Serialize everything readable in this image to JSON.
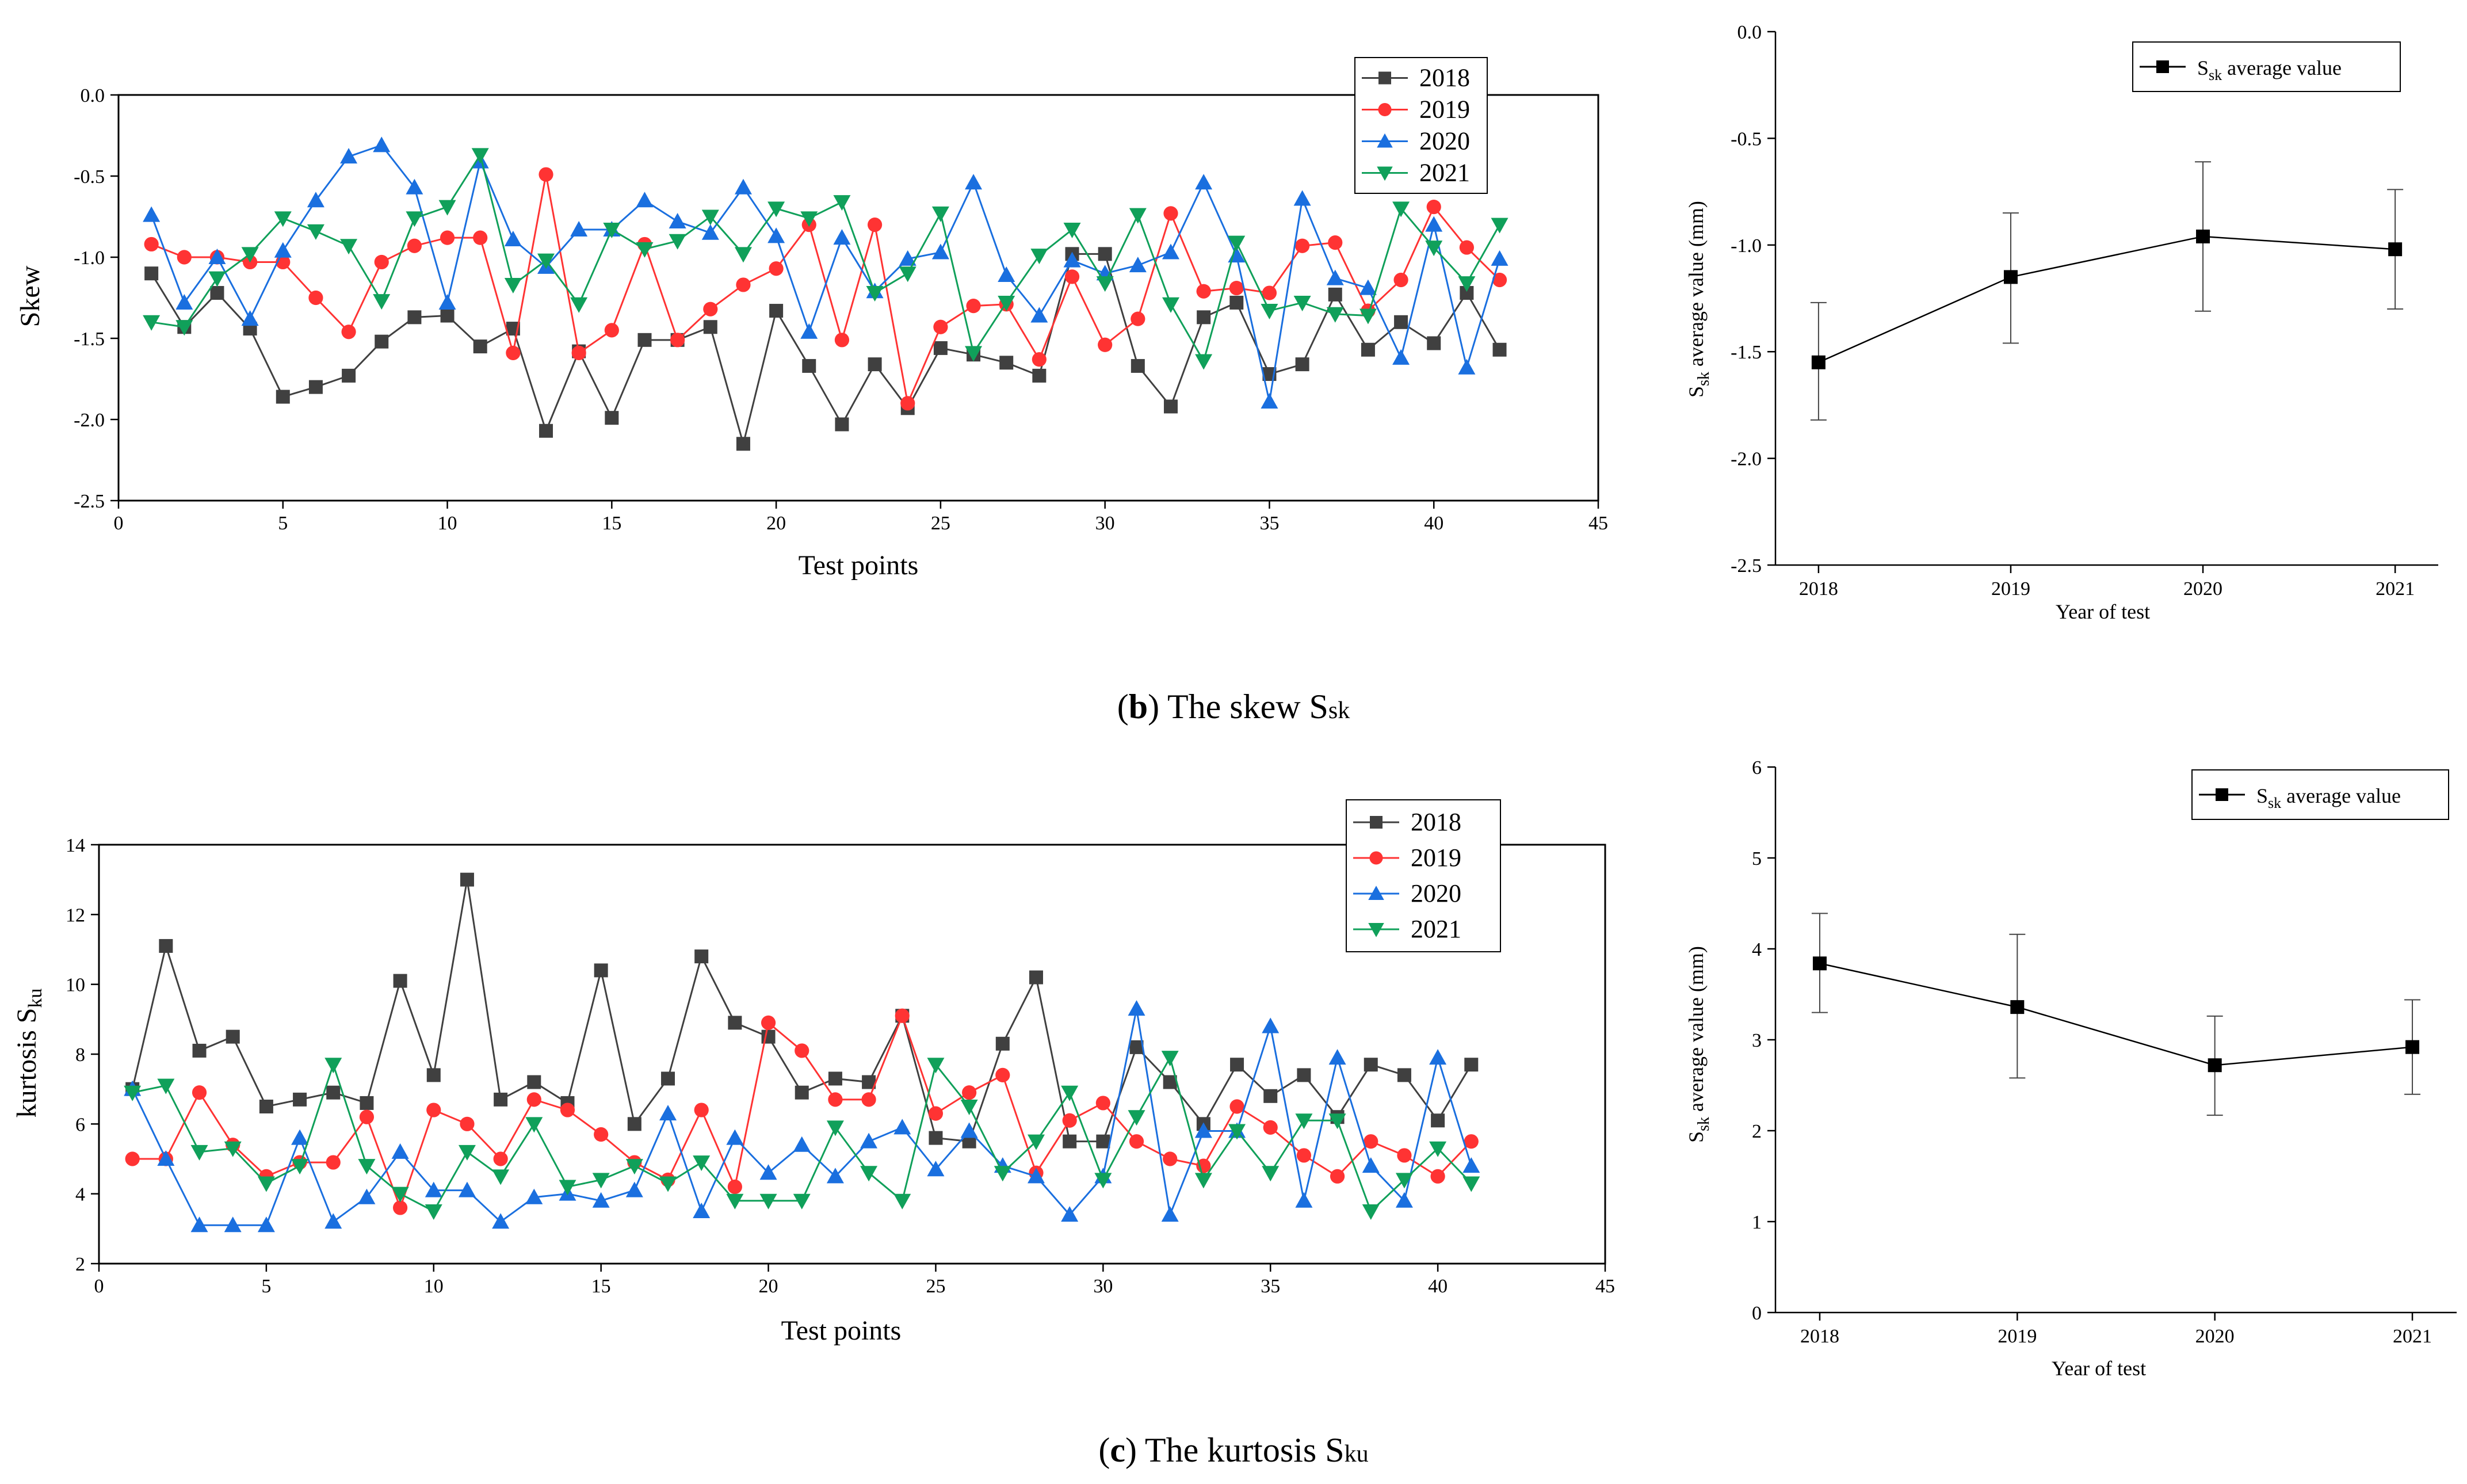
{
  "figure": {
    "captions": [
      {
        "label": "b",
        "text": ") The skew S",
        "sub": "sk"
      },
      {
        "label": "c",
        "text": ") The kurtosis S",
        "sub": "ku"
      }
    ]
  },
  "chart_data": [
    {
      "id": "skew-points",
      "type": "line",
      "title": "",
      "xlabel": "Test points",
      "ylabel": "Skew",
      "xlim": [
        0,
        45
      ],
      "ylim": [
        -2.5,
        0.0
      ],
      "xticks": [
        0,
        5,
        10,
        15,
        20,
        25,
        30,
        35,
        40,
        45
      ],
      "yticks": [
        -2.5,
        -2.0,
        -1.5,
        -1.0,
        -0.5,
        0.0
      ],
      "ytick_labels": [
        "-2.5",
        "-2.0",
        "-1.5",
        "-1.0",
        "-0.5",
        "0.0"
      ],
      "legend_position": "top-right",
      "x": [
        1,
        2,
        3,
        4,
        5,
        6,
        7,
        8,
        9,
        10,
        11,
        12,
        13,
        14,
        15,
        16,
        17,
        18,
        19,
        20,
        21,
        22,
        23,
        24,
        25,
        26,
        27,
        28,
        29,
        30,
        31,
        32,
        33,
        34,
        35,
        36,
        37,
        38,
        39,
        40,
        41,
        42
      ],
      "series": [
        {
          "name": "2018",
          "color": "#404040",
          "marker": "square",
          "values": [
            -1.1,
            -1.43,
            -1.22,
            -1.44,
            -1.86,
            -1.8,
            -1.73,
            -1.52,
            -1.37,
            -1.36,
            -1.55,
            -1.44,
            -2.07,
            -1.58,
            -1.99,
            -1.51,
            -1.51,
            -1.43,
            -2.15,
            -1.33,
            -1.67,
            -2.03,
            -1.66,
            -1.93,
            -1.56,
            -1.6,
            -1.65,
            -1.73,
            -0.98,
            -0.98,
            -1.67,
            -1.92,
            -1.37,
            -1.28,
            -1.72,
            -1.66,
            -1.23,
            -1.57,
            -1.4,
            -1.53,
            -1.22,
            -1.57
          ]
        },
        {
          "name": "2019",
          "color": "#ff3333",
          "marker": "circle",
          "values": [
            -0.92,
            -1.0,
            -1.0,
            -1.03,
            -1.03,
            -1.25,
            -1.46,
            -1.03,
            -0.93,
            -0.88,
            -0.88,
            -1.59,
            -0.49,
            -1.59,
            -1.45,
            -0.92,
            -1.51,
            -1.32,
            -1.17,
            -1.07,
            -0.8,
            -1.51,
            -0.8,
            -1.9,
            -1.43,
            -1.3,
            -1.29,
            -1.63,
            -1.12,
            -1.54,
            -1.38,
            -0.73,
            -1.21,
            -1.19,
            -1.22,
            -0.93,
            -0.91,
            -1.33,
            -1.14,
            -0.69,
            -0.94,
            -1.14
          ]
        },
        {
          "name": "2020",
          "color": "#1a6fdf",
          "marker": "triangle-up",
          "values": [
            -0.74,
            -1.28,
            -1.0,
            -1.38,
            -0.96,
            -0.65,
            -0.38,
            -0.31,
            -0.57,
            -1.28,
            -0.41,
            -0.89,
            -1.06,
            -0.83,
            -0.83,
            -0.65,
            -0.78,
            -0.85,
            -0.57,
            -0.87,
            -1.46,
            -0.88,
            -1.21,
            -1.01,
            -0.97,
            -0.54,
            -1.11,
            -1.36,
            -1.02,
            -1.1,
            -1.05,
            -0.97,
            -0.54,
            -0.99,
            -1.89,
            -0.64,
            -1.13,
            -1.19,
            -1.62,
            -0.8,
            -1.68,
            -1.01
          ]
        },
        {
          "name": "2021",
          "color": "#10a05a",
          "marker": "triangle-down",
          "values": [
            -1.4,
            -1.43,
            -1.13,
            -0.98,
            -0.76,
            -0.84,
            -0.93,
            -1.27,
            -0.76,
            -0.69,
            -0.37,
            -1.17,
            -1.02,
            -1.29,
            -0.83,
            -0.95,
            -0.9,
            -0.75,
            -0.98,
            -0.7,
            -0.76,
            -0.66,
            -1.22,
            -1.1,
            -0.73,
            -1.59,
            -1.28,
            -0.99,
            -0.83,
            -1.16,
            -0.74,
            -1.29,
            -1.64,
            -0.91,
            -1.33,
            -1.28,
            -1.35,
            -1.36,
            -0.7,
            -0.94,
            -1.16,
            -0.8
          ]
        }
      ]
    },
    {
      "id": "skew-average",
      "type": "line",
      "title": "",
      "xlabel": "Year of test",
      "ylabel": "S",
      "ylabel_sub": "sk",
      "ylabel_rest": " average value  (mm)",
      "categories": [
        "2018",
        "2019",
        "2020",
        "2021"
      ],
      "ylim": [
        -2.5,
        0.0
      ],
      "yticks": [
        -2.5,
        -2.0,
        -1.5,
        -1.0,
        -0.5,
        0.0
      ],
      "ytick_labels": [
        "-2.5",
        "-2.0",
        "-1.5",
        "-1.0",
        "-0.5",
        "0.0"
      ],
      "legend_position": "top-right",
      "series": [
        {
          "name": "S",
          "name_sub": "sk",
          "name_rest": " average value",
          "color": "#000000",
          "marker": "square",
          "values": [
            -1.55,
            -1.15,
            -0.96,
            -1.02
          ],
          "error_low": [
            -1.82,
            -1.46,
            -1.31,
            -1.3
          ],
          "error_high": [
            -1.27,
            -0.85,
            -0.61,
            -0.74
          ]
        }
      ]
    },
    {
      "id": "kurtosis-points",
      "type": "line",
      "title": "",
      "xlabel": "Test points",
      "ylabel": "kurtosis  S",
      "ylabel_sub": "ku",
      "xlim": [
        0,
        45
      ],
      "ylim": [
        2,
        14
      ],
      "xticks": [
        0,
        5,
        10,
        15,
        20,
        25,
        30,
        35,
        40,
        45
      ],
      "yticks": [
        2,
        4,
        6,
        8,
        10,
        12,
        14
      ],
      "ytick_labels": [
        "2",
        "4",
        "6",
        "8",
        "10",
        "12",
        "14"
      ],
      "legend_position": "top-right",
      "x": [
        1,
        2,
        3,
        4,
        5,
        6,
        7,
        8,
        9,
        10,
        11,
        12,
        13,
        14,
        15,
        16,
        17,
        18,
        19,
        20,
        21,
        22,
        23,
        24,
        25,
        26,
        27,
        28,
        29,
        30,
        31,
        32,
        33,
        34,
        35,
        36,
        37,
        38,
        39,
        40,
        41
      ],
      "series": [
        {
          "name": "2018",
          "color": "#404040",
          "marker": "square",
          "values": [
            7.0,
            11.1,
            8.1,
            8.5,
            6.5,
            6.7,
            6.9,
            6.6,
            10.1,
            7.4,
            13.0,
            6.7,
            7.2,
            6.6,
            10.4,
            6.0,
            7.3,
            10.8,
            8.9,
            8.5,
            6.9,
            7.3,
            7.2,
            9.1,
            5.6,
            5.5,
            8.3,
            10.2,
            5.5,
            5.5,
            8.2,
            7.2,
            6.0,
            7.7,
            6.8,
            7.4,
            6.2,
            7.7,
            7.4,
            6.1,
            7.7
          ]
        },
        {
          "name": "2019",
          "color": "#ff3333",
          "marker": "circle",
          "values": [
            5.0,
            5.0,
            6.9,
            5.4,
            4.5,
            4.9,
            4.9,
            6.2,
            3.6,
            6.4,
            6.0,
            5.0,
            6.7,
            6.4,
            5.7,
            4.9,
            4.4,
            6.4,
            4.2,
            8.9,
            8.1,
            6.7,
            6.7,
            9.1,
            6.3,
            6.9,
            7.4,
            4.6,
            6.1,
            6.6,
            5.5,
            5.0,
            4.8,
            6.5,
            5.9,
            5.1,
            4.5,
            5.5,
            5.1,
            4.5,
            5.5
          ]
        },
        {
          "name": "2020",
          "color": "#1a6fdf",
          "marker": "triangle-up",
          "values": [
            7.0,
            5.0,
            3.1,
            3.1,
            3.1,
            5.6,
            3.2,
            3.9,
            5.2,
            4.1,
            4.1,
            3.2,
            3.9,
            4.0,
            3.8,
            4.1,
            6.3,
            3.5,
            5.6,
            4.6,
            5.4,
            4.5,
            5.5,
            5.9,
            4.7,
            5.8,
            4.8,
            4.5,
            3.4,
            4.5,
            9.3,
            3.4,
            5.8,
            5.8,
            8.8,
            3.8,
            7.9,
            4.8,
            3.8,
            7.9,
            4.8
          ]
        },
        {
          "name": "2021",
          "color": "#10a05a",
          "marker": "triangle-down",
          "values": [
            6.9,
            7.1,
            5.2,
            5.3,
            4.3,
            4.8,
            7.7,
            4.8,
            4.0,
            3.5,
            5.2,
            4.5,
            6.0,
            4.2,
            4.4,
            4.8,
            4.3,
            4.9,
            3.8,
            3.8,
            3.8,
            5.9,
            4.6,
            3.8,
            7.7,
            6.5,
            4.6,
            5.5,
            6.9,
            4.4,
            6.2,
            7.9,
            4.4,
            5.8,
            4.6,
            6.1,
            6.1,
            3.5,
            4.4,
            5.3,
            4.3
          ]
        }
      ]
    },
    {
      "id": "kurtosis-average",
      "type": "line",
      "title": "",
      "xlabel": "Year of test",
      "ylabel": "S",
      "ylabel_sub": "sk",
      "ylabel_rest": " average value  (mm)",
      "categories": [
        "2018",
        "2019",
        "2020",
        "2021"
      ],
      "ylim": [
        0,
        6
      ],
      "yticks": [
        0,
        1,
        2,
        3,
        4,
        5,
        6
      ],
      "ytick_labels": [
        "0",
        "1",
        "2",
        "3",
        "4",
        "5",
        "6"
      ],
      "legend_position": "top-right",
      "series": [
        {
          "name": "S",
          "name_sub": "sk",
          "name_rest": " average value",
          "color": "#000000",
          "marker": "square",
          "values": [
            3.84,
            3.36,
            2.72,
            2.92
          ],
          "error_low": [
            3.3,
            2.58,
            2.17,
            2.4
          ],
          "error_high": [
            4.39,
            4.16,
            3.26,
            3.44
          ]
        }
      ]
    }
  ]
}
